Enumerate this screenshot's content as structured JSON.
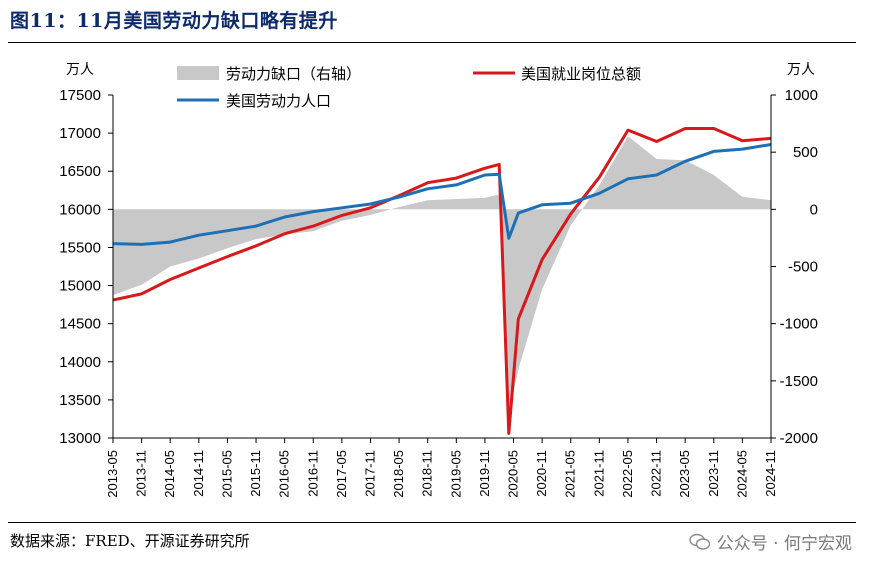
{
  "header": {
    "title": "图11：11月美国劳动力缺口略有提升"
  },
  "footer": {
    "source": "数据来源：FRED、开源证券研究所",
    "watermark": "公众号 · 何宁宏观"
  },
  "chart_data": {
    "type": "line",
    "title": "图11：11月美国劳动力缺口略有提升",
    "y_left_unit": "万人",
    "y_right_unit": "万人",
    "y_left_ticks": [
      "17500",
      "17000",
      "16500",
      "16000",
      "15500",
      "15000",
      "14500",
      "14000",
      "13500",
      "13000"
    ],
    "y_right_ticks": [
      "1000",
      "500",
      "0",
      "-500",
      "-1000",
      "-1500",
      "-2000"
    ],
    "ylim_left": [
      13000,
      17500
    ],
    "ylim_right": [
      -2000,
      1000
    ],
    "x_tick_labels": [
      "2013-05",
      "2013-11",
      "2014-05",
      "2014-11",
      "2015-05",
      "2015-11",
      "2016-05",
      "2016-11",
      "2017-05",
      "2017-11",
      "2018-05",
      "2018-11",
      "2019-05",
      "2019-11",
      "2020-05",
      "2020-11",
      "2021-05",
      "2021-11",
      "2022-05",
      "2022-11",
      "2023-05",
      "2023-11",
      "2024-05",
      "2024-11"
    ],
    "x_range": [
      "2013-05",
      "2024-11"
    ],
    "grid": false,
    "legend": [
      "劳动力缺口（右轴）",
      "美国就业岗位总额",
      "美国劳动力人口"
    ],
    "colors": {
      "gap": "#c8c8c8",
      "jobs": "#d7191c",
      "labor": "#1f6fb4"
    },
    "series": [
      {
        "name": "美国劳动力人口",
        "axis": "left",
        "points": [
          [
            "2013-05",
            15550
          ],
          [
            "2013-11",
            15540
          ],
          [
            "2014-05",
            15570
          ],
          [
            "2014-11",
            15660
          ],
          [
            "2015-05",
            15720
          ],
          [
            "2015-11",
            15780
          ],
          [
            "2016-05",
            15900
          ],
          [
            "2016-11",
            15970
          ],
          [
            "2017-05",
            16020
          ],
          [
            "2017-11",
            16070
          ],
          [
            "2018-05",
            16160
          ],
          [
            "2018-11",
            16270
          ],
          [
            "2019-05",
            16320
          ],
          [
            "2019-11",
            16450
          ],
          [
            "2020-02",
            16460
          ],
          [
            "2020-04",
            15620
          ],
          [
            "2020-06",
            15950
          ],
          [
            "2020-11",
            16060
          ],
          [
            "2021-05",
            16080
          ],
          [
            "2021-11",
            16210
          ],
          [
            "2022-05",
            16400
          ],
          [
            "2022-11",
            16450
          ],
          [
            "2023-05",
            16630
          ],
          [
            "2023-11",
            16760
          ],
          [
            "2024-05",
            16790
          ],
          [
            "2024-11",
            16850
          ]
        ]
      },
      {
        "name": "美国就业岗位总额",
        "axis": "left",
        "points": [
          [
            "2013-05",
            14810
          ],
          [
            "2013-11",
            14890
          ],
          [
            "2014-05",
            15080
          ],
          [
            "2014-11",
            15230
          ],
          [
            "2015-05",
            15380
          ],
          [
            "2015-11",
            15520
          ],
          [
            "2016-05",
            15680
          ],
          [
            "2016-11",
            15780
          ],
          [
            "2017-05",
            15920
          ],
          [
            "2017-11",
            16020
          ],
          [
            "2018-05",
            16180
          ],
          [
            "2018-11",
            16350
          ],
          [
            "2019-05",
            16410
          ],
          [
            "2019-11",
            16540
          ],
          [
            "2020-02",
            16590
          ],
          [
            "2020-04",
            13060
          ],
          [
            "2020-06",
            14560
          ],
          [
            "2020-11",
            15340
          ],
          [
            "2021-05",
            15940
          ],
          [
            "2021-11",
            16420
          ],
          [
            "2022-05",
            17040
          ],
          [
            "2022-11",
            16890
          ],
          [
            "2023-05",
            17060
          ],
          [
            "2023-11",
            17060
          ],
          [
            "2024-05",
            16900
          ],
          [
            "2024-11",
            16930
          ]
        ]
      },
      {
        "name": "劳动力缺口（右轴）",
        "axis": "right",
        "type": "area",
        "points": [
          [
            "2013-05",
            -750
          ],
          [
            "2013-11",
            -660
          ],
          [
            "2014-05",
            -500
          ],
          [
            "2014-11",
            -430
          ],
          [
            "2015-05",
            -340
          ],
          [
            "2015-11",
            -260
          ],
          [
            "2016-05",
            -220
          ],
          [
            "2016-11",
            -190
          ],
          [
            "2017-05",
            -100
          ],
          [
            "2017-11",
            -50
          ],
          [
            "2018-05",
            20
          ],
          [
            "2018-11",
            80
          ],
          [
            "2019-05",
            90
          ],
          [
            "2019-11",
            100
          ],
          [
            "2020-02",
            130
          ],
          [
            "2020-04",
            -1800
          ],
          [
            "2020-06",
            -1400
          ],
          [
            "2020-11",
            -700
          ],
          [
            "2021-05",
            -140
          ],
          [
            "2021-11",
            210
          ],
          [
            "2022-05",
            640
          ],
          [
            "2022-11",
            440
          ],
          [
            "2023-05",
            430
          ],
          [
            "2023-11",
            300
          ],
          [
            "2024-05",
            110
          ],
          [
            "2024-11",
            80
          ]
        ]
      }
    ]
  }
}
